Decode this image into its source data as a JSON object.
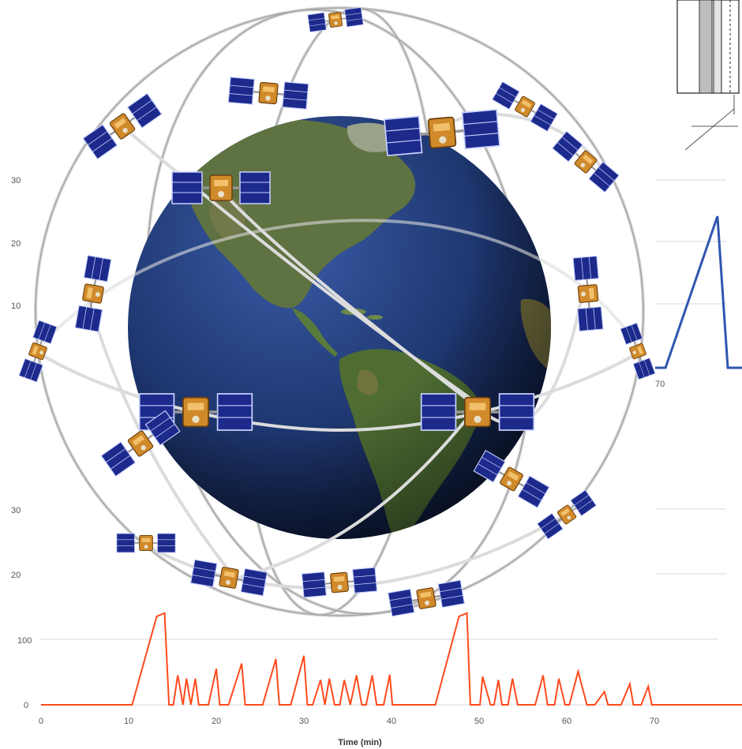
{
  "left_axis_upper": {
    "ticks": [
      "30",
      "20",
      "10"
    ]
  },
  "left_axis_lower": {
    "ticks": [
      "30",
      "20"
    ]
  },
  "right_chart": {
    "x_tick": "70",
    "color": "#2f56b0"
  },
  "bottom_chart": {
    "y_ticks": [
      "100",
      "0"
    ],
    "x_ticks": [
      "0",
      "10",
      "20",
      "30",
      "40",
      "50",
      "60",
      "70"
    ],
    "x_title": "Time (min)",
    "color": "#ff4a1c"
  },
  "chart_data": [
    {
      "type": "line",
      "title": "",
      "xlabel": "Time (min)",
      "ylabel": "",
      "xlim": [
        0,
        80
      ],
      "ylim": [
        0,
        130
      ],
      "x": [
        0,
        10.4,
        13.2,
        14.1,
        14.6,
        15.1,
        15.6,
        16.2,
        16.6,
        17.1,
        17.6,
        18.0,
        18.5,
        19.1,
        20.0,
        20.4,
        21.4,
        22.9,
        23.3,
        24.1,
        25.3,
        26.8,
        27.2,
        27.7,
        28.5,
        30.0,
        30.4,
        31.0,
        31.9,
        32.4,
        32.9,
        33.5,
        34.1,
        34.6,
        35.3,
        36.0,
        36.6,
        37.1,
        37.8,
        38.3,
        39.1,
        39.8,
        40.1,
        40.5,
        45.0,
        47.7,
        48.6,
        49.0,
        50.1,
        50.4,
        51.3,
        51.7,
        52.2,
        52.6,
        53.3,
        53.8,
        54.4,
        55.0,
        56.4,
        57.3,
        57.8,
        58.6,
        59.1,
        59.8,
        60.3,
        61.3,
        62.3,
        62.7,
        63.2,
        64.3,
        64.7,
        65.2,
        65.7,
        66.2,
        67.2,
        67.6,
        68.5,
        69.3,
        69.7,
        70.0,
        80.0
      ],
      "y": [
        0,
        0,
        135,
        140,
        0,
        0,
        45,
        0,
        40,
        0,
        40,
        0,
        0,
        0,
        55,
        0,
        0,
        63,
        0,
        0,
        0,
        70,
        0,
        0,
        0,
        75,
        0,
        0,
        38,
        0,
        40,
        0,
        0,
        38,
        0,
        45,
        0,
        0,
        45,
        0,
        0,
        46,
        0,
        0,
        0,
        135,
        140,
        0,
        0,
        43,
        0,
        0,
        38,
        0,
        0,
        40,
        0,
        0,
        0,
        45,
        0,
        0,
        40,
        0,
        0,
        51,
        0,
        0,
        0,
        20,
        0,
        0,
        0,
        0,
        32,
        0,
        0,
        28,
        0,
        0,
        0
      ]
    },
    {
      "type": "line",
      "title": "",
      "xlabel": "",
      "ylabel": "",
      "ylim": [
        0,
        30
      ],
      "x": [
        68.5,
        69.0,
        71.5,
        72.0,
        75.0
      ],
      "y": [
        0,
        0,
        24,
        0,
        0
      ]
    }
  ],
  "illustration": {
    "subject": "globe-with-satellite-constellation",
    "ocean": "#1e3770",
    "land": "#5f7242",
    "orbit": "#cfcfcf"
  }
}
